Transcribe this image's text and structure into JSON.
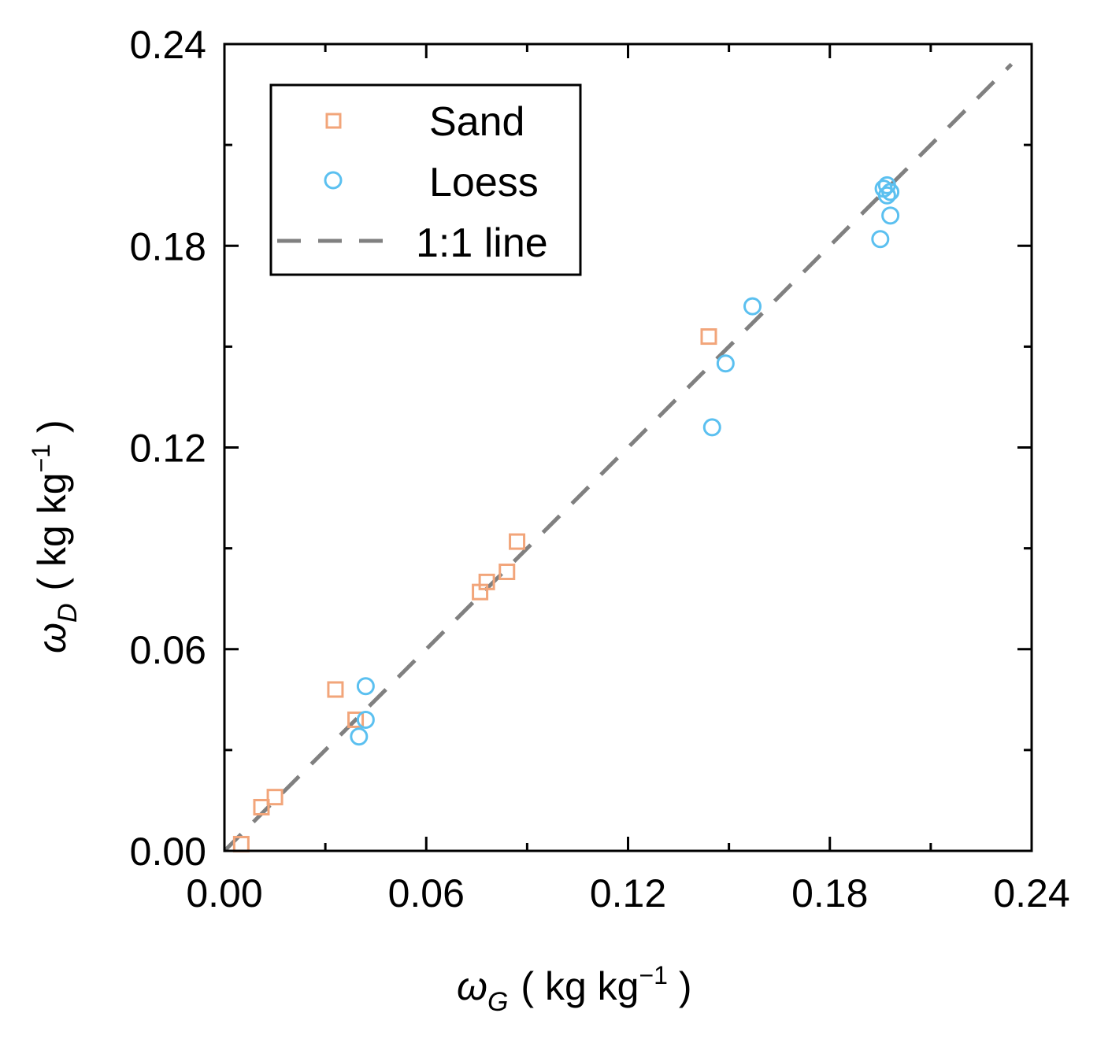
{
  "chart_data": {
    "type": "scatter",
    "title": "",
    "xlabel": {
      "symbol": "ω",
      "subscript": "G",
      "unit_open": "( kg kg",
      "unit_exp": "−1",
      "unit_close": " )"
    },
    "ylabel": {
      "symbol": "ω",
      "subscript": "D",
      "unit_open": "( kg kg",
      "unit_exp": "−1",
      "unit_close": " )"
    },
    "xlim": [
      0,
      0.24
    ],
    "ylim": [
      0,
      0.24
    ],
    "xticks": [
      0.0,
      0.06,
      0.12,
      0.18,
      0.24
    ],
    "yticks": [
      0.0,
      0.06,
      0.12,
      0.18,
      0.24
    ],
    "xtick_labels": [
      "0.00",
      "0.06",
      "0.12",
      "0.18",
      "0.24"
    ],
    "ytick_labels": [
      "0.00",
      "0.06",
      "0.12",
      "0.18",
      "0.24"
    ],
    "minor_ticks": [
      0.03,
      0.09,
      0.15,
      0.21
    ],
    "grid": false,
    "legend_position": "top-left",
    "series": [
      {
        "name": "Sand",
        "marker": "square",
        "color": "#F2A57A",
        "x": [
          0.005,
          0.011,
          0.015,
          0.033,
          0.039,
          0.076,
          0.078,
          0.084,
          0.087,
          0.144
        ],
        "y": [
          0.002,
          0.013,
          0.016,
          0.048,
          0.039,
          0.077,
          0.08,
          0.083,
          0.092,
          0.153
        ]
      },
      {
        "name": "Loess",
        "marker": "circle",
        "color": "#5BC0F0",
        "x": [
          0.04,
          0.042,
          0.042,
          0.145,
          0.149,
          0.157,
          0.195,
          0.196,
          0.197,
          0.198,
          0.198,
          0.197
        ],
        "y": [
          0.034,
          0.039,
          0.049,
          0.126,
          0.145,
          0.162,
          0.182,
          0.197,
          0.198,
          0.196,
          0.189,
          0.195
        ]
      },
      {
        "name": "1:1 line",
        "marker": "dashed-line",
        "color": "#808080",
        "x": [
          0.0,
          0.234
        ],
        "y": [
          0.0,
          0.234
        ]
      }
    ]
  }
}
